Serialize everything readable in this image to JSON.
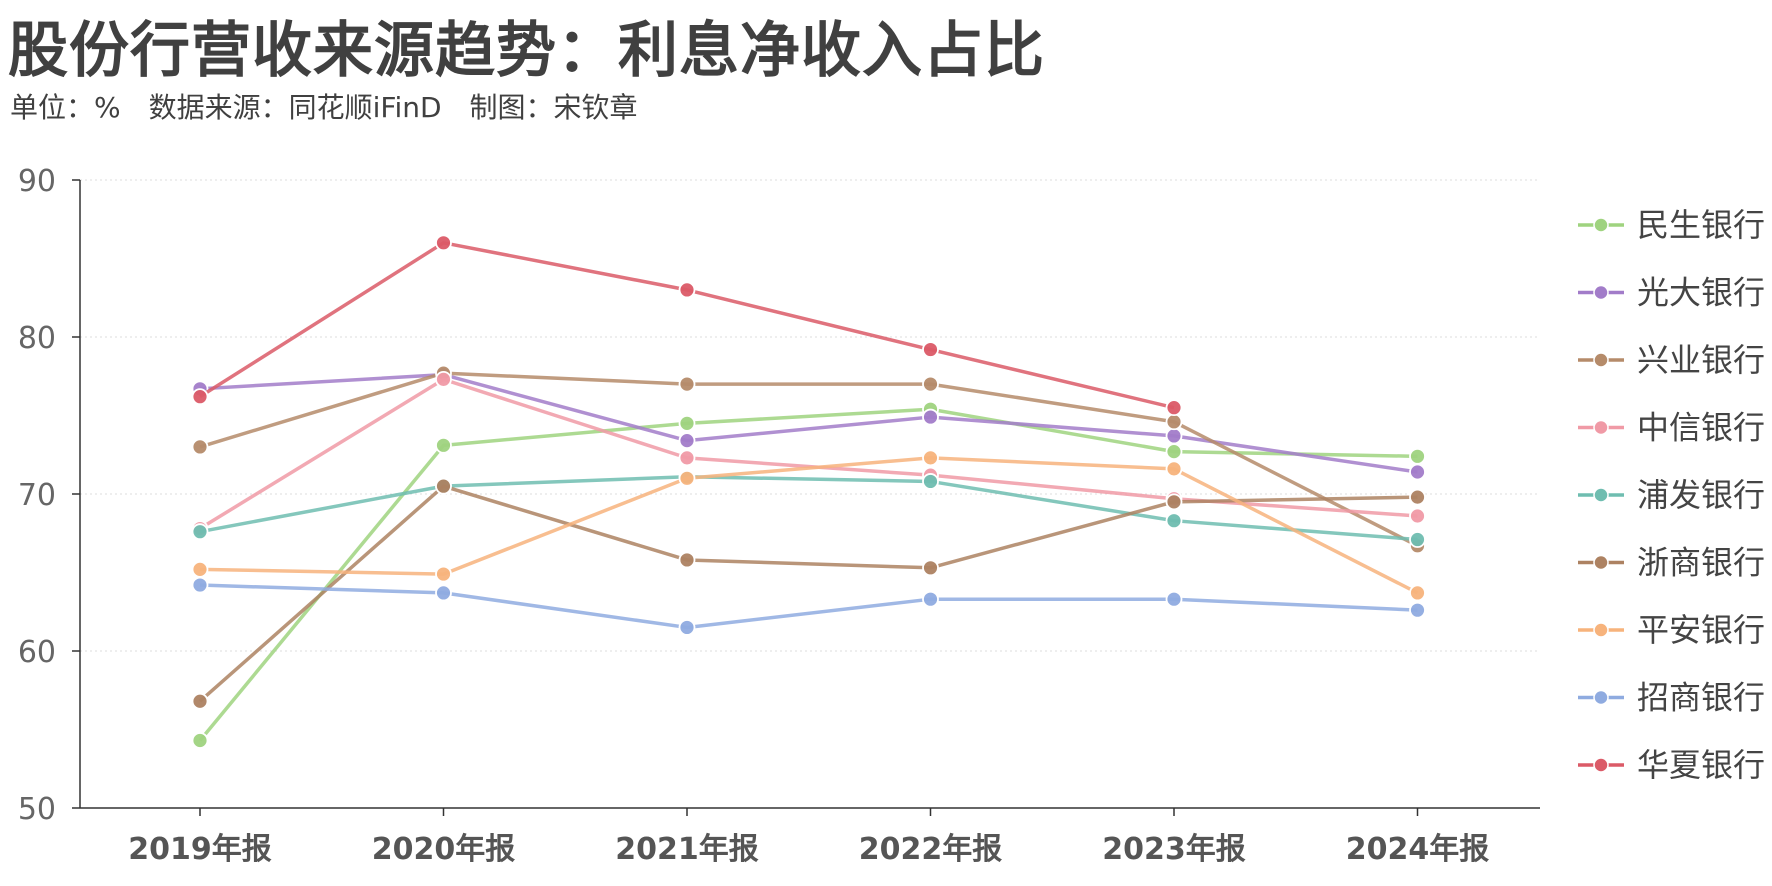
{
  "title": "股份行营收来源趋势：利息净收入占比",
  "subtitle": "单位：%　数据来源：同花顺iFinD　制图：宋钦章",
  "chart_data": {
    "type": "line",
    "categories": [
      "2019年报",
      "2020年报",
      "2021年报",
      "2022年报",
      "2023年报",
      "2024年报"
    ],
    "ylim": [
      50,
      90
    ],
    "yticks": [
      50,
      60,
      70,
      80,
      90
    ],
    "grid": true,
    "legend_position": "right",
    "series": [
      {
        "name": "民生银行",
        "color": "#9fd37f",
        "values": [
          54.3,
          73.1,
          74.5,
          75.4,
          72.7,
          72.4
        ]
      },
      {
        "name": "光大银行",
        "color": "#a27cc9",
        "values": [
          76.7,
          77.6,
          73.4,
          74.9,
          73.7,
          71.4
        ]
      },
      {
        "name": "兴业银行",
        "color": "#b58b6a",
        "values": [
          73.0,
          77.7,
          77.0,
          77.0,
          74.6,
          66.7
        ]
      },
      {
        "name": "中信银行",
        "color": "#f09aa6",
        "values": [
          67.8,
          77.3,
          72.3,
          71.2,
          69.7,
          68.6
        ]
      },
      {
        "name": "浦发银行",
        "color": "#6fbdb0",
        "values": [
          67.6,
          70.5,
          71.1,
          70.8,
          68.3,
          67.1
        ]
      },
      {
        "name": "浙商银行",
        "color": "#ad8262",
        "values": [
          56.8,
          70.5,
          65.8,
          65.3,
          69.5,
          69.8
        ]
      },
      {
        "name": "平安银行",
        "color": "#f7b37c",
        "values": [
          65.2,
          64.9,
          71.0,
          72.3,
          71.6,
          63.7
        ]
      },
      {
        "name": "招商银行",
        "color": "#8fabe0",
        "values": [
          64.2,
          63.7,
          61.5,
          63.3,
          63.3,
          62.6
        ]
      },
      {
        "name": "华夏银行",
        "color": "#db5a67",
        "values": [
          76.2,
          86.0,
          83.0,
          79.2,
          75.5,
          null
        ]
      }
    ]
  }
}
